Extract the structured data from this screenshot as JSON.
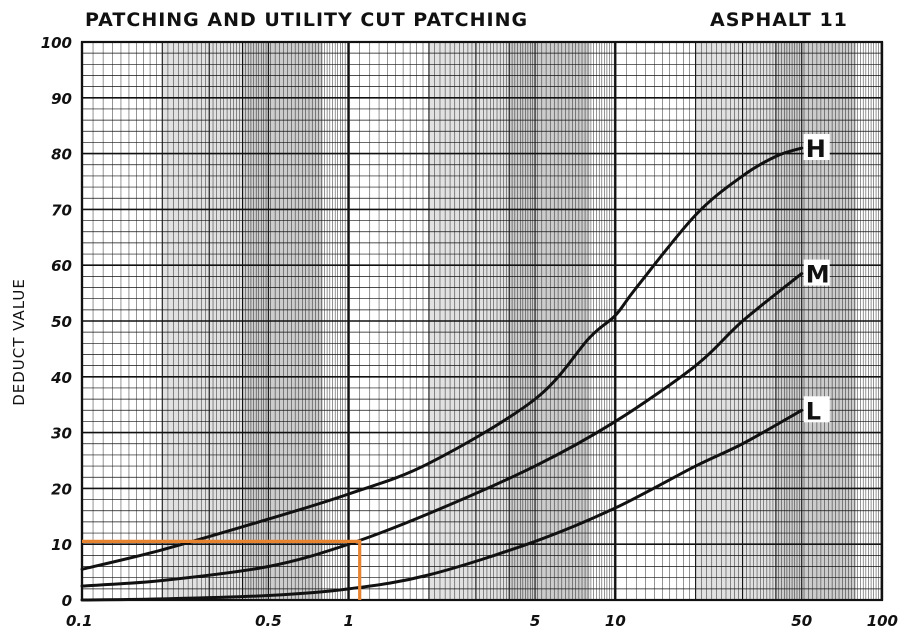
{
  "chart_data": {
    "type": "line",
    "title": "PATCHING AND UTILITY CUT PATCHING",
    "subtitle": "ASPHALT 11",
    "ylabel": "DEDUCT VALUE",
    "xlabel": "",
    "x_scale": "log",
    "xlim": [
      0.1,
      100
    ],
    "ylim": [
      0,
      100
    ],
    "x_ticks": [
      0.1,
      0.5,
      1,
      5,
      10,
      50,
      100
    ],
    "x_tick_labels": [
      "0.1",
      "0.5",
      "1",
      "5",
      "10",
      "50",
      "100"
    ],
    "y_ticks": [
      0,
      10,
      20,
      30,
      40,
      50,
      60,
      70,
      80,
      90,
      100
    ],
    "y_tick_labels": [
      "0",
      "10",
      "20",
      "30",
      "40",
      "50",
      "60",
      "70",
      "80",
      "90",
      "100"
    ],
    "grid": true,
    "series": [
      {
        "name": "H",
        "x": [
          0.1,
          0.2,
          0.5,
          1,
          2,
          5,
          8,
          10,
          12,
          20,
          30,
          40,
          50
        ],
        "y": [
          5.5,
          9,
          14.5,
          19,
          24.5,
          36,
          47,
          51,
          56,
          69,
          76,
          79.5,
          81
        ],
        "color": "#111111"
      },
      {
        "name": "M",
        "x": [
          0.1,
          0.2,
          0.5,
          1,
          2,
          5,
          10,
          20,
          30,
          50
        ],
        "y": [
          2.5,
          3.5,
          6,
          10,
          15.5,
          24,
          32,
          42,
          50,
          58.5
        ],
        "color": "#111111"
      },
      {
        "name": "L",
        "x": [
          0.1,
          0.2,
          0.5,
          1,
          2,
          5,
          10,
          20,
          30,
          50
        ],
        "y": [
          0,
          0.2,
          0.8,
          2,
          4.5,
          10.5,
          16.5,
          24,
          28,
          34
        ],
        "color": "#111111"
      }
    ],
    "annotations": [
      {
        "type": "guide-line",
        "color": "#e8842f",
        "x": 1.1,
        "y": 10.5
      }
    ]
  }
}
